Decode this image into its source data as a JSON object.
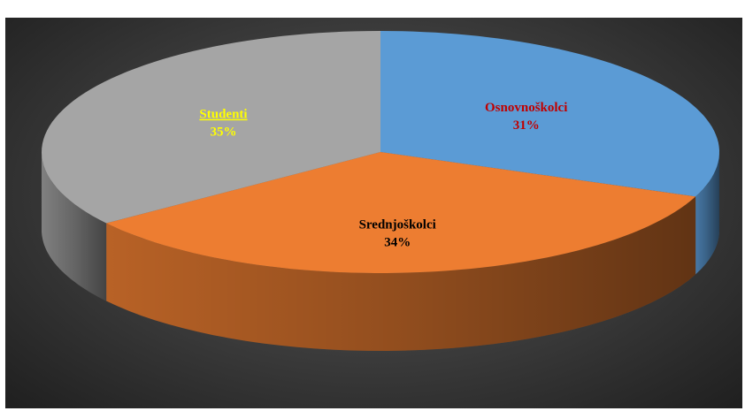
{
  "chart_data": {
    "type": "pie",
    "style": "3d",
    "title": "",
    "categories": [
      "Osnovnoškolci",
      "Srednjoškolci",
      "Studenti"
    ],
    "values": [
      31,
      34,
      35
    ],
    "labels": [
      "31%",
      "34%",
      "35%"
    ],
    "colors": [
      "#5b9bd5",
      "#ed7d31",
      "#a5a5a5"
    ],
    "label_colors": [
      "#c00000",
      "#000000",
      "#ffff00"
    ],
    "legend": "none"
  }
}
